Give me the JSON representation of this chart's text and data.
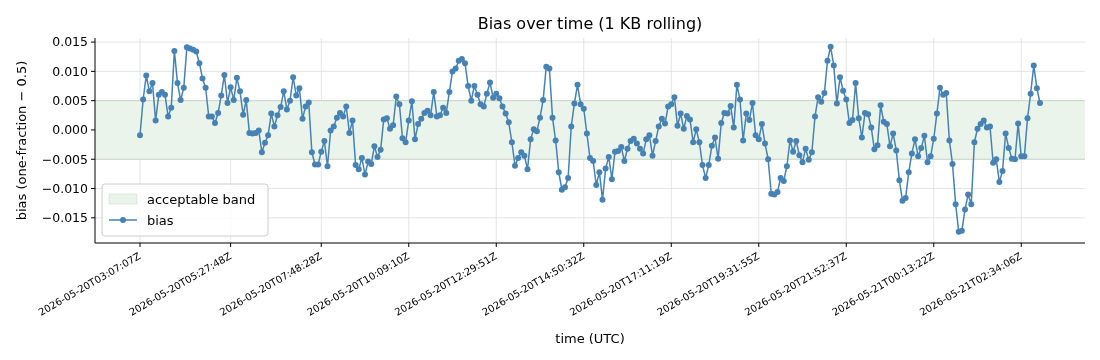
{
  "chart_data": {
    "type": "line",
    "title": "Bias over time (1 KB rolling)",
    "xlabel": "time (UTC)",
    "ylabel": "bias (one-fraction − 0.5)",
    "ylim": [
      -0.0193,
      0.0157
    ],
    "categories": [
      "2026-05-20T03:07:07Z",
      null,
      null,
      null,
      null,
      null,
      null,
      null,
      null,
      null,
      null,
      null,
      null,
      null,
      null,
      null,
      null,
      null,
      null,
      null,
      null,
      null,
      null,
      null,
      null,
      null,
      null,
      null,
      null,
      "2026-05-20T05:27:48Z",
      null,
      null,
      null,
      null,
      null,
      null,
      null,
      null,
      null,
      null,
      null,
      null,
      null,
      null,
      null,
      null,
      null,
      null,
      null,
      null,
      null,
      null,
      null,
      null,
      null,
      null,
      null,
      null,
      "2026-05-20T07:48:28Z",
      null,
      null,
      null,
      null,
      null,
      null,
      null,
      null,
      null,
      null,
      null,
      null,
      null,
      null,
      null,
      null,
      null,
      null,
      null,
      null,
      null,
      null,
      null,
      null,
      null,
      null,
      null,
      "2026-05-20T10:09:10Z",
      null,
      null,
      null,
      null,
      null,
      null,
      null,
      null,
      null,
      null,
      null,
      null,
      null,
      null,
      null,
      null,
      null,
      null,
      null,
      null,
      null,
      null,
      null,
      null,
      null,
      null,
      null,
      "2026-05-20T12:29:51Z",
      null,
      null,
      null,
      null,
      null,
      null,
      null,
      null,
      null,
      null,
      null,
      null,
      null,
      null,
      null,
      null,
      null,
      null,
      null,
      null,
      null,
      null,
      null,
      null,
      null,
      null,
      null,
      "2026-05-20T14:50:32Z",
      null,
      null,
      null,
      null,
      null,
      null,
      null,
      null,
      null,
      null,
      null,
      null,
      null,
      null,
      null,
      null,
      null,
      null,
      null,
      null,
      null,
      null,
      null,
      null,
      null,
      null,
      null,
      "2026-05-20T17:11:19Z",
      null,
      null,
      null,
      null,
      null,
      null,
      null,
      null,
      null,
      null,
      null,
      null,
      null,
      null,
      null,
      null,
      null,
      null,
      null,
      null,
      null,
      null,
      null,
      null,
      null,
      null,
      null,
      "2026-05-20T19:31:55Z",
      null,
      null,
      null,
      null,
      null,
      null,
      null,
      null,
      null,
      null,
      null,
      null,
      null,
      null,
      null,
      null,
      null,
      null,
      null,
      null,
      null,
      null,
      null,
      null,
      null,
      null,
      null,
      "2026-05-20T21:52:37Z",
      null,
      null,
      null,
      null,
      null,
      null,
      null,
      null,
      null,
      null,
      null,
      null,
      null,
      null,
      null,
      null,
      null,
      null,
      null,
      null,
      null,
      null,
      null,
      null,
      null,
      null,
      null,
      "2026-05-21T00:13:22Z",
      null,
      null,
      null,
      null,
      null,
      null,
      null,
      null,
      null,
      null,
      null,
      null,
      null,
      null,
      null,
      null,
      null,
      null,
      null,
      null,
      null,
      null,
      null,
      null,
      null,
      null,
      null,
      "2026-05-21T02:34:06Z",
      null,
      null,
      null,
      null,
      null,
      null
    ],
    "yticks": [
      {
        "value": -0.015,
        "label": "−0.015"
      },
      {
        "value": -0.01,
        "label": "−0.010"
      },
      {
        "value": -0.005,
        "label": "−0.005"
      },
      {
        "value": 0,
        "label": "0.000"
      },
      {
        "value": 0.005,
        "label": "0.005"
      },
      {
        "value": 0.01,
        "label": "0.010"
      },
      {
        "value": 0.015,
        "label": "0.015"
      }
    ],
    "grid": true,
    "legend": "bottom left",
    "marker": "circle",
    "bands": [
      {
        "axis": "y",
        "from": -0.005,
        "to": 0.005,
        "label": "acceptable band",
        "color": "#eaf4ea"
      }
    ],
    "series": [
      {
        "name": "bias",
        "color": "#4682b4",
        "values": [
          -0.0009,
          0.0052,
          0.0093,
          0.0066,
          0.008,
          0.0016,
          0.006,
          0.0065,
          0.006,
          0.0023,
          0.0038,
          0.0135,
          0.008,
          0.0051,
          0.0072,
          0.0141,
          0.0139,
          0.0137,
          0.0134,
          0.0114,
          0.0088,
          0.0072,
          0.0023,
          0.0023,
          0.0012,
          0.0029,
          0.0059,
          0.0094,
          0.0046,
          0.0073,
          0.0051,
          0.0089,
          0.0066,
          0.0026,
          0.0051,
          -0.0005,
          -0.0006,
          -0.0005,
          -0.0001,
          -0.0038,
          -0.0022,
          -0.0009,
          0.0028,
          0.0006,
          0.0025,
          0.0039,
          0.0066,
          0.0035,
          0.005,
          0.009,
          0.0059,
          0.0071,
          0.0019,
          0.004,
          0.0047,
          -0.0038,
          -0.0059,
          -0.0059,
          -0.0037,
          -0.0019,
          -0.0062,
          -0.0001,
          0.0006,
          0.0021,
          0.0029,
          0.0023,
          0.004,
          -0.0005,
          0.0016,
          -0.006,
          -0.0067,
          -0.0048,
          -0.0076,
          -0.0054,
          -0.0058,
          -0.0028,
          -0.0046,
          -0.0034,
          0.0018,
          0.002,
          0.0002,
          0.0008,
          0.0057,
          0.0044,
          -0.0014,
          -0.0021,
          0.0016,
          0.0049,
          -0.0016,
          0.001,
          0.0019,
          0.0029,
          0.0033,
          0.0025,
          0.0065,
          0.0023,
          0.0025,
          0.0038,
          0.0029,
          0.0065,
          0.01,
          0.0105,
          0.0118,
          0.0121,
          0.0114,
          0.0075,
          0.005,
          0.0075,
          0.006,
          0.0044,
          0.004,
          0.0062,
          0.0081,
          0.0055,
          0.0062,
          0.0054,
          0.004,
          0.0028,
          0.0013,
          -0.0021,
          -0.0061,
          -0.0048,
          -0.0038,
          -0.0044,
          -0.0067,
          -0.0016,
          0.0001,
          -0.0002,
          0.0021,
          0.0051,
          0.0108,
          0.0105,
          0.0021,
          -0.0018,
          -0.0072,
          -0.0102,
          -0.0098,
          -0.0082,
          0.0006,
          0.0045,
          0.0077,
          0.0044,
          0.0036,
          -0.0006,
          -0.0048,
          -0.0053,
          -0.0094,
          -0.0072,
          -0.0119,
          -0.0066,
          -0.0046,
          -0.0084,
          -0.0037,
          -0.0036,
          -0.0029,
          -0.0053,
          -0.0032,
          -0.0019,
          -0.0015,
          -0.0023,
          -0.0032,
          -0.004,
          -0.0016,
          -0.0009,
          -0.0044,
          -0.0019,
          0.0006,
          0.0019,
          0.0011,
          0.004,
          0.0044,
          0.0056,
          0.0007,
          0.0028,
          0.0002,
          0.0024,
          0.0018,
          -0.0021,
          0.0001,
          -0.0021,
          -0.006,
          -0.0082,
          -0.006,
          -0.0027,
          -0.0013,
          -0.0049,
          0.0012,
          0.0029,
          0.0028,
          0.0041,
          0.0004,
          0.0077,
          0.0052,
          -0.0018,
          0.0028,
          0.0017,
          0.0046,
          -0.0009,
          -0.0016,
          0.001,
          -0.0023,
          -0.005,
          -0.0109,
          -0.011,
          -0.0106,
          -0.0082,
          -0.0087,
          -0.0062,
          -0.0018,
          -0.0037,
          -0.0019,
          -0.0043,
          -0.0055,
          -0.0032,
          -0.0051,
          -0.0038,
          0.0023,
          0.0056,
          0.0048,
          0.0063,
          0.0118,
          0.0142,
          0.011,
          0.0045,
          0.009,
          0.0067,
          0.0052,
          0.0012,
          0.0017,
          0.008,
          0.002,
          -0.0013,
          0.0029,
          0.0027,
          0.0004,
          -0.0033,
          -0.0026,
          0.0042,
          0.0014,
          0.001,
          -0.0028,
          -0.0006,
          -0.0035,
          -0.0086,
          -0.0121,
          -0.0116,
          -0.0072,
          -0.004,
          -0.0016,
          -0.0045,
          -0.0031,
          -0.001,
          -0.0055,
          -0.0045,
          -0.0015,
          0.0028,
          0.0072,
          0.006,
          0.0063,
          -0.0018,
          -0.0058,
          -0.0127,
          -0.0174,
          -0.0172,
          -0.0136,
          -0.011,
          -0.0127,
          -0.0021,
          0.0002,
          0.001,
          0.0016,
          0.0004,
          0.0006,
          -0.0056,
          -0.005,
          -0.0089,
          -0.007,
          -0.0006,
          -0.0031,
          -0.0049,
          -0.005,
          0.0011,
          -0.0045,
          -0.0045,
          0.002,
          0.0062,
          0.011,
          0.0071,
          0.0046
        ]
      }
    ]
  }
}
